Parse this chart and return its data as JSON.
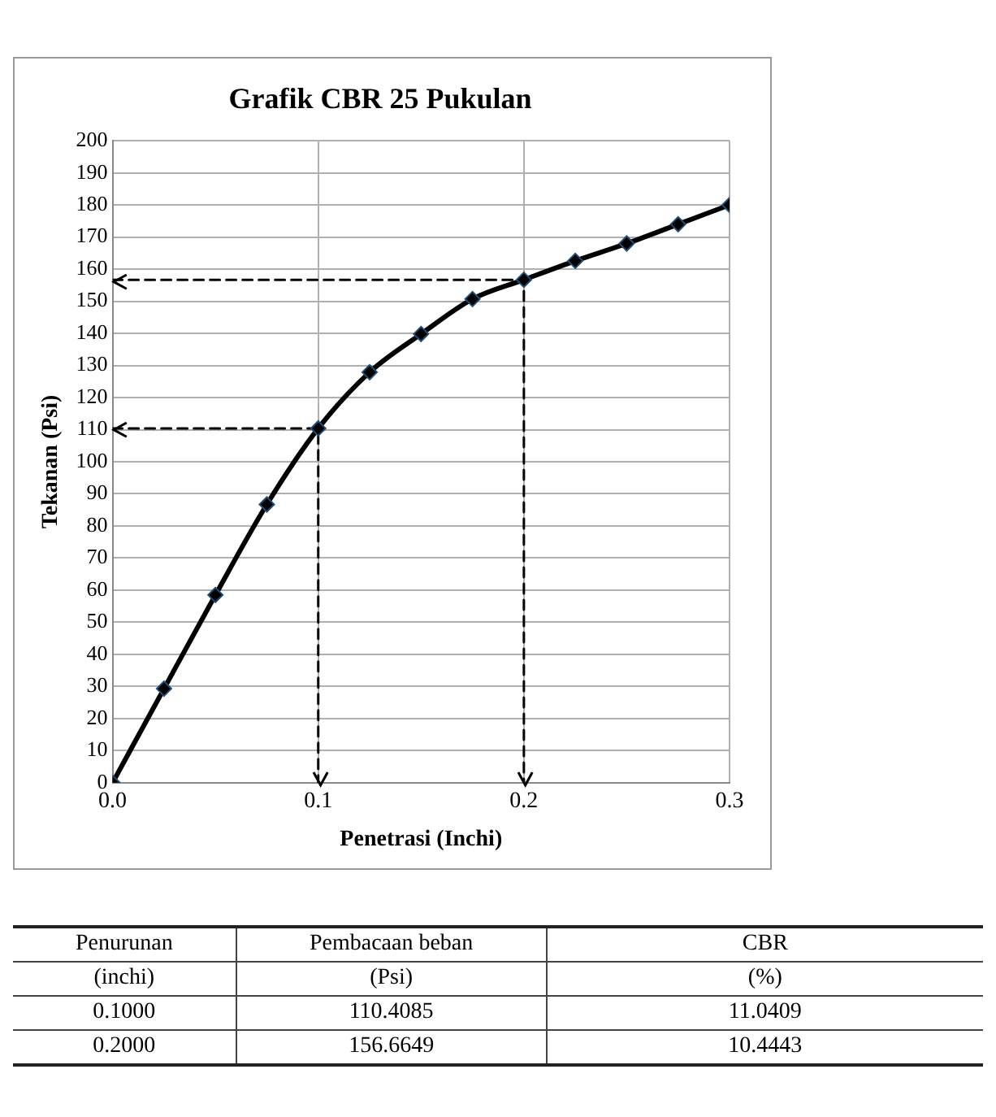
{
  "chart_data": {
    "type": "line",
    "title": "Grafik CBR 25 Pukulan",
    "xlabel": "Penetrasi (Inchi)",
    "ylabel": "Tekanan (Psi)",
    "series": [
      {
        "color": "#000000",
        "marker": "diamond",
        "line_style": "solid",
        "x": [
          0,
          0.025,
          0.05,
          0.075,
          0.1,
          0.125,
          0.15,
          0.175,
          0.2,
          0.225,
          0.25,
          0.275,
          0.3
        ],
        "values": [
          0,
          29.3,
          58.5,
          86.7,
          110.4,
          127.9,
          139.8,
          150.7,
          156.7,
          162.6,
          168,
          174,
          180
        ]
      },
      {
        "color": "#000000",
        "marker": "none",
        "line_style": "dashed",
        "x": [
          0,
          0.1,
          0.1
        ],
        "values": [
          110.4,
          110.4,
          0
        ]
      },
      {
        "color": "#000000",
        "marker": "none",
        "line_style": "dashed",
        "x": [
          0,
          0.2,
          0.2
        ],
        "values": [
          156.7,
          156.7,
          0
        ]
      }
    ],
    "xlim": [
      0,
      0.3
    ],
    "xticks": [
      {
        "value": 0,
        "label": "0.0"
      },
      0.1,
      0.2,
      0.3
    ],
    "ylim": [
      0,
      200
    ],
    "yticks": [
      0,
      10,
      20,
      30,
      40,
      50,
      60,
      70,
      80,
      90,
      100,
      110,
      120,
      130,
      140,
      150,
      160,
      170,
      180,
      190,
      200
    ],
    "grid": true,
    "legend": false,
    "annotations": [
      "Penurunan",
      "Pembacaan beban",
      "CBR",
      "(inchi)",
      "(Psi)",
      "(%)",
      "0.1000",
      "110.4085",
      "11.0409",
      "0.2000",
      "156.6649",
      "10.4443"
    ]
  }
}
